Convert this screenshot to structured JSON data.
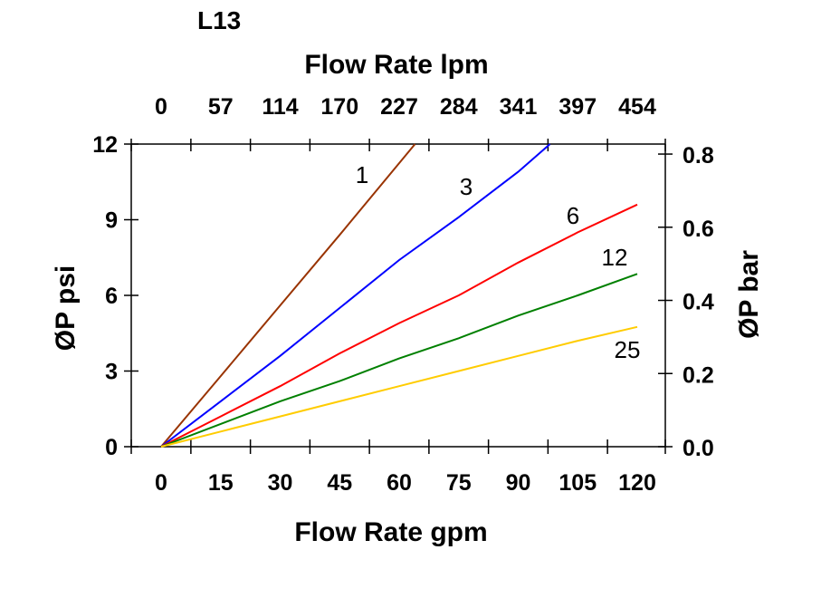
{
  "chart_data": {
    "type": "line",
    "title": "L13",
    "xlabel": "Flow Rate gpm",
    "x2label": "Flow Rate lpm",
    "ylabel": "ØP psi",
    "y2label": "ØP bar",
    "xlim": [
      0,
      120
    ],
    "ylim": [
      0,
      12
    ],
    "y2lim": [
      0.0,
      0.8
    ],
    "grid": false,
    "x_ticks": [
      "0",
      "15",
      "30",
      "45",
      "60",
      "75",
      "90",
      "105",
      "120"
    ],
    "x2_ticks": [
      "0",
      "57",
      "114",
      "170",
      "227",
      "284",
      "341",
      "397",
      "454"
    ],
    "y_ticks": [
      "0",
      "3",
      "6",
      "9",
      "12"
    ],
    "y2_ticks": [
      "0.0",
      "0.2",
      "0.4",
      "0.6",
      "0.8"
    ],
    "series": [
      {
        "name": "1",
        "color": "#993300",
        "x": [
          0,
          15,
          30,
          45,
          64
        ],
        "y": [
          0,
          2.8,
          5.6,
          8.4,
          12
        ]
      },
      {
        "name": "3",
        "color": "#0000ff",
        "x": [
          0,
          15,
          30,
          45,
          60,
          75,
          90,
          98
        ],
        "y": [
          0,
          1.8,
          3.6,
          5.5,
          7.4,
          9.1,
          10.9,
          12
        ]
      },
      {
        "name": "6",
        "color": "#ff0000",
        "x": [
          0,
          15,
          30,
          45,
          60,
          75,
          90,
          105,
          120
        ],
        "y": [
          0,
          1.2,
          2.4,
          3.7,
          4.9,
          6.0,
          7.3,
          8.5,
          9.6
        ]
      },
      {
        "name": "12",
        "color": "#008000",
        "x": [
          0,
          15,
          30,
          45,
          60,
          75,
          90,
          105,
          120
        ],
        "y": [
          0,
          0.9,
          1.8,
          2.6,
          3.5,
          4.3,
          5.2,
          6.0,
          6.85
        ]
      },
      {
        "name": "25",
        "color": "#ffcc00",
        "x": [
          0,
          15,
          30,
          45,
          60,
          75,
          90,
          105,
          120
        ],
        "y": [
          0,
          0.6,
          1.2,
          1.8,
          2.4,
          3.0,
          3.6,
          4.2,
          4.75
        ]
      }
    ]
  }
}
